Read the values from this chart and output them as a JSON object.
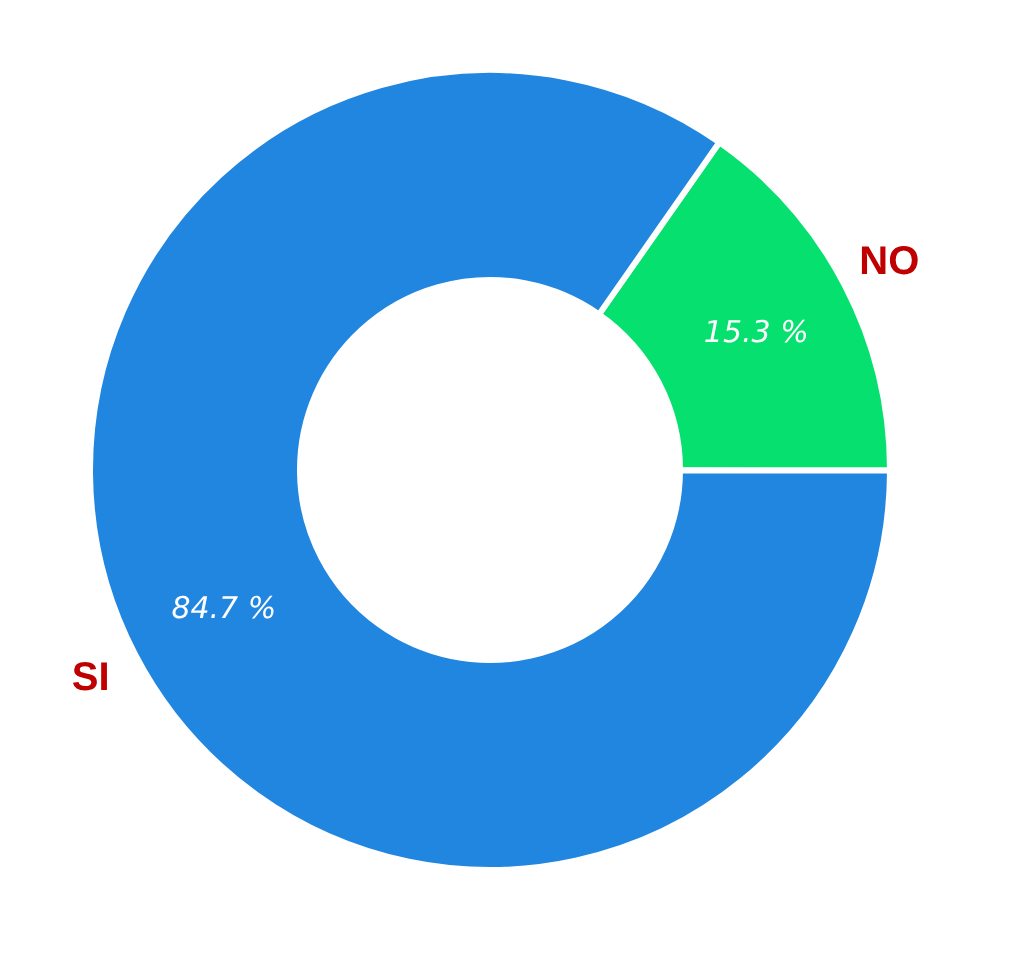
{
  "chart_data": {
    "type": "donut",
    "categories": [
      "NO",
      "SI"
    ],
    "values": [
      15.3,
      84.7
    ],
    "colors": [
      "#06e06f",
      "#2186e0"
    ],
    "value_labels": [
      "15.3 %",
      "84.7 %"
    ],
    "legend": false
  }
}
